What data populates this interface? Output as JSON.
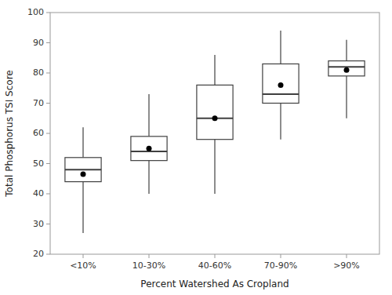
{
  "chart_data": {
    "type": "box",
    "xlabel": "Percent Watershed As Cropland",
    "ylabel": "Total Phosphorus TSI Score",
    "categories": [
      "<10%",
      "10-30%",
      "40-60%",
      "70-90%",
      ">90%"
    ],
    "boxes": [
      {
        "min": 27,
        "q1": 44,
        "median": 48,
        "q3": 52,
        "max": 62,
        "mean": 46.5
      },
      {
        "min": 40,
        "q1": 51,
        "median": 54,
        "q3": 59,
        "max": 73,
        "mean": 55
      },
      {
        "min": 40,
        "q1": 58,
        "median": 65,
        "q3": 76,
        "max": 86,
        "mean": 65
      },
      {
        "min": 58,
        "q1": 70,
        "median": 73,
        "q3": 83,
        "max": 94,
        "mean": 76
      },
      {
        "min": 65,
        "q1": 79,
        "median": 82,
        "q3": 84,
        "max": 91,
        "mean": 81
      }
    ],
    "ylim": [
      20,
      100
    ],
    "yticks": [
      20,
      30,
      40,
      50,
      60,
      70,
      80,
      90,
      100
    ],
    "color": "#404040",
    "marker": "o",
    "grid": false
  }
}
